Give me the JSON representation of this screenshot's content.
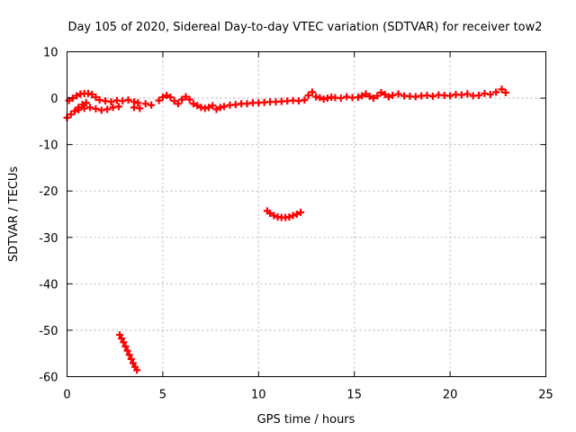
{
  "chart_data": {
    "type": "scatter",
    "title": "Day 105 of 2020, Sidereal Day-to-day VTEC variation (SDTVAR) for receiver tow2",
    "xlabel": "GPS time / hours",
    "ylabel": "SDTVAR / TECUs",
    "xlim": [
      0,
      25
    ],
    "ylim": [
      -60,
      10
    ],
    "xticks": [
      0,
      5,
      10,
      15,
      20,
      25
    ],
    "yticks": [
      -60,
      -50,
      -40,
      -30,
      -20,
      -10,
      0,
      10
    ],
    "grid": true,
    "marker": "plus",
    "color": "#ff0000",
    "series": [
      {
        "name": "main band",
        "points": [
          [
            0.0,
            -4.2
          ],
          [
            0.2,
            -3.5
          ],
          [
            0.4,
            -2.8
          ],
          [
            0.6,
            -2.0
          ],
          [
            0.8,
            -1.4
          ],
          [
            1.0,
            -1.0
          ],
          [
            0.1,
            -0.5
          ],
          [
            0.3,
            0.0
          ],
          [
            0.5,
            0.5
          ],
          [
            0.7,
            0.9
          ],
          [
            0.9,
            1.0
          ],
          [
            1.1,
            1.0
          ],
          [
            1.3,
            0.8
          ],
          [
            1.5,
            0.2
          ],
          [
            0.6,
            -2.5
          ],
          [
            0.9,
            -2.2
          ],
          [
            1.2,
            -2.0
          ],
          [
            1.5,
            -2.3
          ],
          [
            1.8,
            -2.6
          ],
          [
            2.1,
            -2.4
          ],
          [
            2.4,
            -2.0
          ],
          [
            2.7,
            -1.8
          ],
          [
            1.7,
            -0.4
          ],
          [
            2.0,
            -0.6
          ],
          [
            2.3,
            -0.8
          ],
          [
            2.6,
            -0.5
          ],
          [
            2.9,
            -0.6
          ],
          [
            3.2,
            -0.4
          ],
          [
            3.5,
            -0.8
          ],
          [
            3.7,
            -1.0
          ],
          [
            3.5,
            -2.0
          ],
          [
            3.8,
            -2.2
          ],
          [
            4.1,
            -1.2
          ],
          [
            4.4,
            -1.5
          ],
          [
            4.8,
            -0.5
          ],
          [
            5.0,
            0.2
          ],
          [
            5.2,
            0.6
          ],
          [
            5.4,
            0.2
          ],
          [
            5.6,
            -0.6
          ],
          [
            5.8,
            -1.2
          ],
          [
            6.0,
            -0.3
          ],
          [
            6.2,
            0.3
          ],
          [
            6.4,
            -0.3
          ],
          [
            6.6,
            -1.2
          ],
          [
            6.8,
            -1.6
          ],
          [
            7.0,
            -2.0
          ],
          [
            7.2,
            -2.2
          ],
          [
            7.4,
            -2.0
          ],
          [
            7.6,
            -1.6
          ],
          [
            7.8,
            -2.4
          ],
          [
            8.0,
            -2.0
          ],
          [
            8.2,
            -1.8
          ],
          [
            8.5,
            -1.5
          ],
          [
            8.8,
            -1.4
          ],
          [
            9.1,
            -1.2
          ],
          [
            9.4,
            -1.2
          ],
          [
            9.7,
            -1.0
          ],
          [
            10.0,
            -1.0
          ],
          [
            10.3,
            -0.9
          ],
          [
            10.6,
            -0.8
          ],
          [
            10.9,
            -0.8
          ],
          [
            11.2,
            -0.7
          ],
          [
            11.5,
            -0.6
          ],
          [
            11.8,
            -0.5
          ],
          [
            12.1,
            -0.6
          ],
          [
            12.4,
            -0.4
          ],
          [
            12.6,
            0.6
          ],
          [
            12.8,
            1.3
          ],
          [
            13.0,
            0.3
          ],
          [
            13.2,
            0.1
          ],
          [
            13.4,
            -0.2
          ],
          [
            13.6,
            0.0
          ],
          [
            13.8,
            0.2
          ],
          [
            14.0,
            0.1
          ],
          [
            14.3,
            0.0
          ],
          [
            14.6,
            0.3
          ],
          [
            14.9,
            0.1
          ],
          [
            15.2,
            0.2
          ],
          [
            15.4,
            0.5
          ],
          [
            15.6,
            0.9
          ],
          [
            15.8,
            0.4
          ],
          [
            16.0,
            0.0
          ],
          [
            16.2,
            0.5
          ],
          [
            16.4,
            1.2
          ],
          [
            16.6,
            0.8
          ],
          [
            16.8,
            0.3
          ],
          [
            17.0,
            0.6
          ],
          [
            17.3,
            0.9
          ],
          [
            17.6,
            0.5
          ],
          [
            17.9,
            0.4
          ],
          [
            18.2,
            0.3
          ],
          [
            18.5,
            0.5
          ],
          [
            18.8,
            0.6
          ],
          [
            19.1,
            0.4
          ],
          [
            19.4,
            0.7
          ],
          [
            19.7,
            0.6
          ],
          [
            20.0,
            0.5
          ],
          [
            20.3,
            0.8
          ],
          [
            20.6,
            0.7
          ],
          [
            20.9,
            0.9
          ],
          [
            21.2,
            0.5
          ],
          [
            21.5,
            0.6
          ],
          [
            21.8,
            1.0
          ],
          [
            22.1,
            0.8
          ],
          [
            22.4,
            1.3
          ],
          [
            22.7,
            1.9
          ],
          [
            22.9,
            1.2
          ]
        ]
      },
      {
        "name": "arc near -25",
        "points": [
          [
            10.45,
            -24.3
          ],
          [
            10.6,
            -24.8
          ],
          [
            10.8,
            -25.3
          ],
          [
            11.0,
            -25.6
          ],
          [
            11.2,
            -25.7
          ],
          [
            11.4,
            -25.7
          ],
          [
            11.6,
            -25.6
          ],
          [
            11.8,
            -25.3
          ],
          [
            12.0,
            -25.0
          ],
          [
            12.2,
            -24.6
          ]
        ]
      },
      {
        "name": "descending segment",
        "points": [
          [
            2.75,
            -51.0
          ],
          [
            2.85,
            -51.8
          ],
          [
            2.95,
            -52.6
          ],
          [
            3.05,
            -53.5
          ],
          [
            3.15,
            -54.4
          ],
          [
            3.25,
            -55.3
          ],
          [
            3.35,
            -56.2
          ],
          [
            3.45,
            -57.1
          ],
          [
            3.55,
            -57.9
          ],
          [
            3.65,
            -58.6
          ]
        ]
      }
    ]
  }
}
